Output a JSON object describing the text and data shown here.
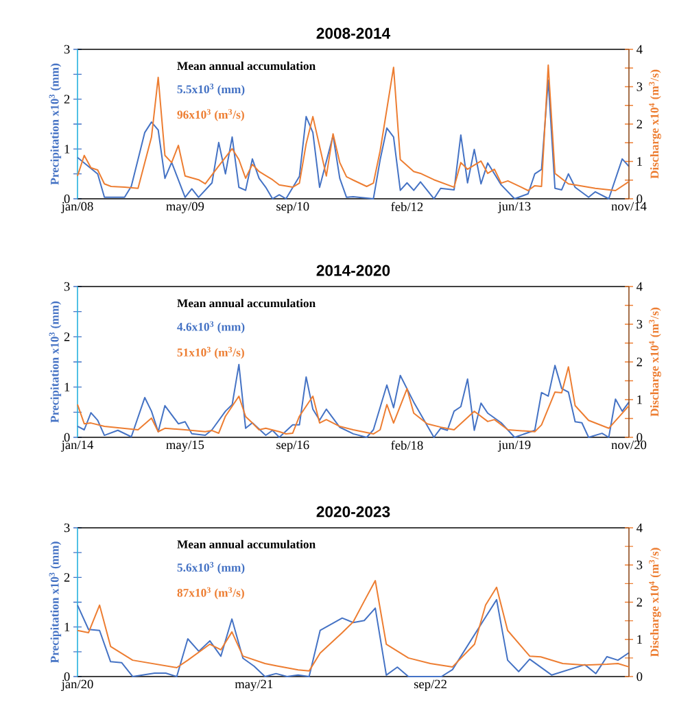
{
  "chart_data": [
    {
      "type": "line",
      "title": "2008-2014",
      "ylabel": "Precipitation x10$^{3}$ (mm)",
      "y2label": "Discharge x10$^{4}$ (m$^{3}$/s)",
      "annotations": [
        "Mean annual accumulation",
        "5.5x10$^{3}$ (mm)",
        "96x10$^{3}$ (m$^{3}$/s)"
      ],
      "xlim": [
        "2008-01",
        "2014-11"
      ],
      "xticks": [
        {
          "value": "2008-01",
          "label": "jan/08"
        },
        {
          "value": "2009-05",
          "label": "may/09"
        },
        {
          "value": "2010-09",
          "label": "sep/10"
        },
        {
          "value": "2012-02",
          "label": "feb/12"
        },
        {
          "value": "2013-06",
          "label": "jun/13"
        },
        {
          "value": "2014-11",
          "label": "nov/14"
        }
      ],
      "ylim": [
        0,
        3
      ],
      "yticks": [
        0,
        {
          "value": 0.5,
          "label": null
        },
        1,
        {
          "value": 1.5,
          "label": null
        },
        2,
        {
          "value": 2.5,
          "label": null
        },
        3
      ],
      "y2lim": [
        0,
        4
      ],
      "y2ticks": [
        0,
        {
          "value": 0.5,
          "label": null
        },
        1,
        {
          "value": 1.5,
          "label": null
        },
        2,
        {
          "value": 2.5,
          "label": null
        },
        3,
        {
          "value": 3.5,
          "label": null
        },
        4
      ],
      "series": [
        {
          "color": "#4472c4",
          "x": [
            "2008-01",
            "2008-04",
            "2008-05",
            "2008-08",
            "2008-09",
            "2008-11",
            "2008-12",
            "2009-01",
            "2009-02",
            "2009-03",
            "2009-05",
            "2009-06",
            "2009-07",
            "2009-09",
            "2009-10",
            "2009-11",
            "2009-12",
            "2010-01",
            "2010-02",
            "2010-03",
            "2010-04",
            "2010-05",
            "2010-06",
            "2010-07",
            "2010-08",
            "2010-10",
            "2010-11",
            "2010-12",
            "2011-01",
            "2011-03",
            "2011-04",
            "2011-05",
            "2011-06",
            "2011-09",
            "2011-10",
            "2011-11",
            "2011-12",
            "2012-01",
            "2012-02",
            "2012-03",
            "2012-04",
            "2012-06",
            "2012-07",
            "2012-09",
            "2012-10",
            "2012-11",
            "2012-12",
            "2013-01",
            "2013-02",
            "2013-04",
            "2013-06",
            "2013-08",
            "2013-09",
            "2013-10",
            "2013-11",
            "2013-12",
            "2014-01",
            "2014-02",
            "2014-03",
            "2014-05",
            "2014-06",
            "2014-08",
            "2014-10",
            "2014-11"
          ],
          "values": [
            0.83,
            0.5,
            0.03,
            0.03,
            0.25,
            1.33,
            1.54,
            1.38,
            0.41,
            0.73,
            0.03,
            0.2,
            0.03,
            0.32,
            1.13,
            0.5,
            1.24,
            0.23,
            0.17,
            0.8,
            0.41,
            0.23,
            0,
            0.08,
            0,
            0.45,
            1.65,
            1.33,
            0.23,
            1.27,
            0.41,
            0.03,
            0.04,
            0,
            0.78,
            1.42,
            1.24,
            0.17,
            0.32,
            0.17,
            0.34,
            0,
            0.21,
            0.18,
            1.28,
            0.32,
            0.99,
            0.3,
            0.72,
            0.28,
            0,
            0.1,
            0.5,
            0.59,
            2.38,
            0.21,
            0.18,
            0.5,
            0.23,
            0.03,
            0.14,
            0,
            0.8,
            0.65
          ]
        },
        {
          "color": "#ed7d31",
          "axis": "y2",
          "x": [
            "2008-01",
            "2008-02",
            "2008-03",
            "2008-04",
            "2008-05",
            "2008-06",
            "2008-08",
            "2008-10",
            "2008-12",
            "2009-01",
            "2009-02",
            "2009-03",
            "2009-04",
            "2009-05",
            "2009-07",
            "2009-08",
            "2009-10",
            "2009-12",
            "2010-01",
            "2010-02",
            "2010-03",
            "2010-04",
            "2010-06",
            "2010-07",
            "2010-09",
            "2010-10",
            "2010-11",
            "2010-12",
            "2011-02",
            "2011-03",
            "2011-04",
            "2011-05",
            "2011-06",
            "2011-08",
            "2011-09",
            "2011-10",
            "2011-12",
            "2012-01",
            "2012-03",
            "2012-04",
            "2012-06",
            "2012-09",
            "2012-10",
            "2012-11",
            "2013-01",
            "2013-02",
            "2013-03",
            "2013-04",
            "2013-05",
            "2013-07",
            "2013-08",
            "2013-09",
            "2013-10",
            "2013-11",
            "2013-12",
            "2014-02",
            "2014-03",
            "2014-06",
            "2014-09",
            "2014-11"
          ],
          "values": [
            0.61,
            1.16,
            0.83,
            0.77,
            0.4,
            0.33,
            0.31,
            0.28,
            1.65,
            3.25,
            1.16,
            0.97,
            1.43,
            0.61,
            0.51,
            0.4,
            0.88,
            1.34,
            1.05,
            0.55,
            0.92,
            0.73,
            0.51,
            0.37,
            0.31,
            0.42,
            1.47,
            2.2,
            0.61,
            1.74,
            0.97,
            0.59,
            0.5,
            0.33,
            0.42,
            1.28,
            3.52,
            1.05,
            0.73,
            0.68,
            0.51,
            0.31,
            0.97,
            0.79,
            1.01,
            0.68,
            0.79,
            0.42,
            0.48,
            0.31,
            0.22,
            0.35,
            0.33,
            3.58,
            0.68,
            0.4,
            0.37,
            0.28,
            0.22,
            0.46
          ]
        }
      ]
    },
    {
      "type": "line",
      "title": "2014-2020",
      "ylabel": "Precipitation x10$^{3}$ (mm)",
      "y2label": "Discharge x10$^{4}$ (m$^{3}$/s)",
      "annotations": [
        "Mean annual accumulation",
        "4.6x10$^{3}$ (mm)",
        "51x10$^{3}$ (m$^{3}$/s)"
      ],
      "xlim": [
        "2014-01",
        "2020-11"
      ],
      "xticks": [
        {
          "value": "2014-01",
          "label": "jan/14"
        },
        {
          "value": "2015-05",
          "label": "may/15"
        },
        {
          "value": "2016-09",
          "label": "sep/16"
        },
        {
          "value": "2018-02",
          "label": "feb/18"
        },
        {
          "value": "2019-06",
          "label": "jun/19"
        },
        {
          "value": "2020-11",
          "label": "nov/20"
        }
      ],
      "ylim": [
        0,
        3
      ],
      "yticks": [
        0,
        {
          "value": 0.5,
          "label": null
        },
        1,
        {
          "value": 1.5,
          "label": null
        },
        2,
        {
          "value": 2.5,
          "label": null
        },
        3
      ],
      "y2lim": [
        0,
        4
      ],
      "y2ticks": [
        0,
        {
          "value": 0.5,
          "label": null
        },
        1,
        {
          "value": 1.5,
          "label": null
        },
        2,
        {
          "value": 2.5,
          "label": null
        },
        3,
        {
          "value": 3.5,
          "label": null
        },
        4
      ],
      "series": [
        {
          "color": "#4472c4",
          "x": [
            "2014-01",
            "2014-02",
            "2014-03",
            "2014-04",
            "2014-05",
            "2014-07",
            "2014-09",
            "2014-11",
            "2014-12",
            "2015-01",
            "2015-02",
            "2015-04",
            "2015-05",
            "2015-06",
            "2015-08",
            "2015-09",
            "2015-11",
            "2015-12",
            "2016-01",
            "2016-02",
            "2016-03",
            "2016-05",
            "2016-06",
            "2016-07",
            "2016-09",
            "2016-10",
            "2016-11",
            "2016-12",
            "2017-01",
            "2017-02",
            "2017-04",
            "2017-06",
            "2017-08",
            "2017-09",
            "2017-11",
            "2017-12",
            "2018-01",
            "2018-03",
            "2018-06",
            "2018-07",
            "2018-08",
            "2018-09",
            "2018-10",
            "2018-11",
            "2018-12",
            "2019-01",
            "2019-02",
            "2019-04",
            "2019-06",
            "2019-09",
            "2019-10",
            "2019-11",
            "2019-12",
            "2020-01",
            "2020-02",
            "2020-03",
            "2020-04",
            "2020-05",
            "2020-07",
            "2020-08",
            "2020-09",
            "2020-10",
            "2020-11"
          ],
          "values": [
            0.22,
            0.15,
            0.49,
            0.34,
            0.04,
            0.14,
            0.01,
            0.79,
            0.52,
            0.11,
            0.63,
            0.27,
            0.31,
            0.07,
            0.04,
            0.15,
            0.52,
            0.65,
            1.45,
            0.18,
            0.29,
            0.04,
            0.14,
            0,
            0.25,
            0.25,
            1.2,
            0.56,
            0.34,
            0.56,
            0.2,
            0.07,
            0,
            0.15,
            1.04,
            0.59,
            1.23,
            0.7,
            0,
            0.18,
            0.14,
            0.52,
            0.61,
            1.16,
            0.14,
            0.68,
            0.48,
            0.29,
            0,
            0.14,
            0.89,
            0.82,
            1.43,
            0.97,
            0.9,
            0.31,
            0.29,
            0,
            0.08,
            0,
            0.76,
            0.52,
            0.7
          ]
        },
        {
          "color": "#ed7d31",
          "axis": "y2",
          "x": [
            "2014-01",
            "2014-02",
            "2014-03",
            "2014-05",
            "2014-10",
            "2014-12",
            "2015-01",
            "2015-02",
            "2015-05",
            "2015-08",
            "2015-09",
            "2015-10",
            "2015-11",
            "2016-01",
            "2016-02",
            "2016-03",
            "2016-04",
            "2016-05",
            "2016-07",
            "2016-08",
            "2016-09",
            "2016-10",
            "2016-12",
            "2017-01",
            "2017-02",
            "2017-04",
            "2017-06",
            "2017-09",
            "2017-10",
            "2017-11",
            "2017-12",
            "2018-02",
            "2018-03",
            "2018-05",
            "2018-07",
            "2018-09",
            "2018-12",
            "2019-02",
            "2019-03",
            "2019-05",
            "2019-09",
            "2019-10",
            "2019-12",
            "2020-01",
            "2020-02",
            "2020-03",
            "2020-05",
            "2020-08",
            "2020-11"
          ],
          "values": [
            0.87,
            0.36,
            0.38,
            0.29,
            0.2,
            0.51,
            0.15,
            0.24,
            0.2,
            0.15,
            0.18,
            0.11,
            0.56,
            1.09,
            0.55,
            0.38,
            0.2,
            0.24,
            0.15,
            0.09,
            0.11,
            0.56,
            1.09,
            0.38,
            0.47,
            0.29,
            0.2,
            0.09,
            0.2,
            0.87,
            0.38,
            1.29,
            0.64,
            0.36,
            0.27,
            0.2,
            0.69,
            0.42,
            0.47,
            0.2,
            0.15,
            0.33,
            1.2,
            1.18,
            1.87,
            0.84,
            0.45,
            0.24,
            0.84
          ]
        }
      ]
    },
    {
      "type": "line",
      "title": "2020-2023",
      "ylabel": "Precipitation x10$^{3}$ (mm)",
      "y2label": "Discharge x10$^{4}$ (m$^{3}$/s)",
      "annotations": [
        "Mean annual accumulation",
        "5.6x10$^{3}$ (mm)",
        "87x10$^{3}$ (m$^{3}$/s)"
      ],
      "xlim": [
        "2020-01",
        "2024-03"
      ],
      "xticks": [
        {
          "value": "2020-01",
          "label": "jan/20"
        },
        {
          "value": "2021-05",
          "label": "may/21"
        },
        {
          "value": "2022-09",
          "label": "sep/22"
        }
      ],
      "ylim": [
        0,
        3
      ],
      "yticks": [
        0,
        {
          "value": 0.5,
          "label": null
        },
        1,
        {
          "value": 1.5,
          "label": null
        },
        2,
        {
          "value": 2.5,
          "label": null
        },
        3
      ],
      "y2lim": [
        0,
        4
      ],
      "y2ticks": [
        0,
        {
          "value": 0.5,
          "label": null
        },
        1,
        {
          "value": 1.5,
          "label": null
        },
        2,
        {
          "value": 2.5,
          "label": null
        },
        3,
        {
          "value": 3.5,
          "label": null
        },
        4
      ],
      "series": [
        {
          "color": "#4472c4",
          "x": [
            "2020-01",
            "2020-02",
            "2020-03",
            "2020-04",
            "2020-05",
            "2020-06",
            "2020-08",
            "2020-09",
            "2020-10",
            "2020-11",
            "2020-12",
            "2021-01",
            "2021-02",
            "2021-03",
            "2021-04",
            "2021-05",
            "2021-06",
            "2021-07",
            "2021-08",
            "2021-09",
            "2021-10",
            "2021-11",
            "2022-01",
            "2022-02",
            "2022-03",
            "2022-04",
            "2022-05",
            "2022-06",
            "2022-07",
            "2022-10",
            "2022-11",
            "2023-02",
            "2023-03",
            "2023-04",
            "2023-05",
            "2023-06",
            "2023-08",
            "2023-11",
            "2023-12",
            "2024-01",
            "2024-02",
            "2024-03"
          ],
          "values": [
            1.44,
            0.95,
            0.93,
            0.3,
            0.28,
            0,
            0.07,
            0.07,
            0,
            0.76,
            0.51,
            0.72,
            0.41,
            1.16,
            0.37,
            0.21,
            0,
            0.06,
            0,
            0.03,
            0,
            0.93,
            1.18,
            1.09,
            1.13,
            1.38,
            0.03,
            0.19,
            0,
            0,
            0.14,
            1.2,
            1.55,
            0.33,
            0.1,
            0.35,
            0.03,
            0.24,
            0.06,
            0.4,
            0.33,
            0.48
          ]
        },
        {
          "color": "#ed7d31",
          "axis": "y2",
          "x": [
            "2020-01",
            "2020-02",
            "2020-03",
            "2020-04",
            "2020-06",
            "2020-10",
            "2020-11",
            "2021-01",
            "2021-02",
            "2021-03",
            "2021-04",
            "2021-06",
            "2021-07",
            "2021-09",
            "2021-10",
            "2021-11",
            "2022-01",
            "2022-02",
            "2022-03",
            "2022-04",
            "2022-05",
            "2022-07",
            "2022-09",
            "2022-11",
            "2023-01",
            "2023-02",
            "2023-03",
            "2023-04",
            "2023-06",
            "2023-07",
            "2023-09",
            "2023-11",
            "2024-01",
            "2024-02",
            "2024-03"
          ],
          "values": [
            1.24,
            1.18,
            1.92,
            0.81,
            0.44,
            0.24,
            0.44,
            0.87,
            0.72,
            1.2,
            0.55,
            0.35,
            0.29,
            0.18,
            0.15,
            0.63,
            1.18,
            1.47,
            2.03,
            2.58,
            0.87,
            0.5,
            0.35,
            0.26,
            0.87,
            1.92,
            2.4,
            1.24,
            0.55,
            0.53,
            0.35,
            0.31,
            0.33,
            0.35,
            0.26
          ]
        }
      ]
    }
  ]
}
